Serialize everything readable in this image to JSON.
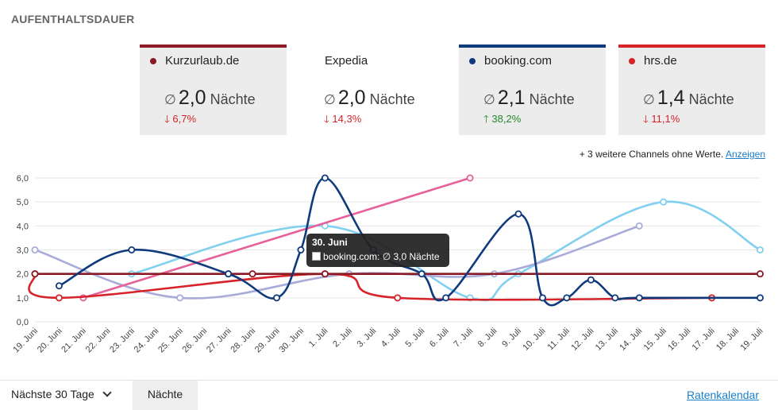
{
  "title": "AUFENTHALTSDAUER",
  "cards": [
    {
      "name": "Kurzurlaub.de",
      "color": "#8b1a24",
      "dot": true,
      "avg_symbol": "∅",
      "avg": "2,0",
      "unit": "Nächte",
      "change": "6,7%",
      "direction": "down"
    },
    {
      "name": "Expedia",
      "color": "",
      "dot": false,
      "avg_symbol": "∅",
      "avg": "2,0",
      "unit": "Nächte",
      "change": "14,3%",
      "direction": "down"
    },
    {
      "name": "booking.com",
      "color": "#0f3a7c",
      "dot": true,
      "avg_symbol": "∅",
      "avg": "2,1",
      "unit": "Nächte",
      "change": "38,2%",
      "direction": "up"
    },
    {
      "name": "hrs.de",
      "color": "#d6232a",
      "dot": true,
      "avg_symbol": "∅",
      "avg": "1,4",
      "unit": "Nächte",
      "change": "11,1%",
      "direction": "down"
    }
  ],
  "more_channels": {
    "text": "+ 3 weitere Channels ohne Werte.",
    "link": "Anzeigen"
  },
  "tooltip": {
    "date": "30. Juni",
    "label": "booking.com: ∅  3,0  Nächte"
  },
  "footer": {
    "range": "Nächste 30 Tage",
    "tab": "Nächte",
    "link": "Ratenkalendar"
  },
  "chart_data": {
    "type": "line",
    "categories": [
      "19. Juni",
      "20. Juni",
      "21. Juni",
      "22. Juni",
      "23. Juni",
      "24. Juni",
      "25. Juni",
      "26. Juni",
      "27. Juni",
      "28. Juni",
      "29. Juni",
      "30. Juni",
      "1. Juli",
      "2. Juli",
      "3. Juli",
      "4. Juli",
      "5. Juli",
      "6. Juli",
      "7. Juli",
      "8. Juli",
      "9. Juli",
      "10. Juli",
      "11. Juli",
      "12. Juli",
      "13. Juli",
      "14. Juli",
      "15. Juli",
      "16. Juli",
      "17. Juli",
      "18. Juli",
      "19. Juli"
    ],
    "yticks": [
      "0,0",
      "1,0",
      "2,0",
      "3,0",
      "4,0",
      "5,0",
      "6,0"
    ],
    "ylim": [
      0,
      6
    ],
    "grid": true,
    "series": [
      {
        "name": "Kurzurlaub.de",
        "color": "#8b1a24",
        "values": [
          2,
          null,
          null,
          null,
          null,
          null,
          null,
          null,
          2,
          2,
          null,
          null,
          2,
          null,
          null,
          null,
          null,
          null,
          null,
          null,
          null,
          null,
          null,
          null,
          null,
          null,
          null,
          null,
          null,
          null,
          2
        ]
      },
      {
        "name": "hrs.de",
        "color": "#d6232a",
        "values": [
          2,
          1,
          null,
          null,
          null,
          null,
          null,
          null,
          null,
          null,
          null,
          null,
          2,
          null,
          null,
          1,
          null,
          null,
          null,
          null,
          null,
          null,
          null,
          null,
          null,
          null,
          null,
          null,
          1,
          null,
          null
        ]
      },
      {
        "name": "booking.com",
        "color": "#0f3a7c",
        "values": [
          null,
          1.5,
          null,
          null,
          3,
          null,
          null,
          null,
          2,
          null,
          1,
          3,
          6,
          null,
          3,
          null,
          2,
          1,
          null,
          null,
          4.5,
          1,
          1,
          1.75,
          1,
          1,
          null,
          null,
          null,
          null,
          1
        ]
      },
      {
        "name": "",
        "color": "#e8609a",
        "values": [
          null,
          null,
          1,
          null,
          null,
          null,
          null,
          null,
          null,
          null,
          null,
          null,
          null,
          null,
          null,
          null,
          null,
          null,
          6,
          null,
          null,
          null,
          null,
          null,
          null,
          null,
          null,
          null,
          null,
          null,
          null
        ]
      },
      {
        "name": "",
        "color": "#82d0f0",
        "values": [
          null,
          null,
          null,
          null,
          2,
          null,
          null,
          null,
          null,
          null,
          null,
          null,
          4,
          null,
          null,
          null,
          null,
          null,
          1,
          null,
          2,
          null,
          null,
          null,
          null,
          null,
          5,
          null,
          null,
          null,
          3
        ]
      },
      {
        "name": "",
        "color": "#a9abd9",
        "values": [
          3,
          null,
          null,
          null,
          null,
          null,
          1,
          null,
          null,
          null,
          null,
          null,
          null,
          2,
          null,
          null,
          null,
          null,
          null,
          2,
          null,
          null,
          null,
          null,
          null,
          4,
          null,
          null,
          null,
          null,
          null
        ]
      }
    ]
  }
}
